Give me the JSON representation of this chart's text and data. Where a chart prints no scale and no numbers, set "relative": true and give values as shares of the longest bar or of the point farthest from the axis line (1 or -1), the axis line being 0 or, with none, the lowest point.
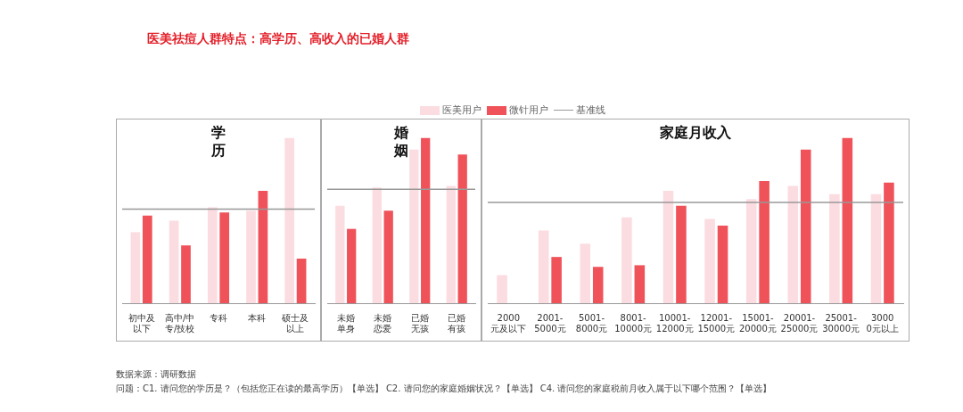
{
  "chart_data": [
    {
      "type": "other",
      "title": "医美祛痘人群特点：高学历、高收入的已婚人群",
      "annotations": [
        "数据来源：调研数据",
        "问题：C1. 请问您的学历是？（包括您正在读的最高学历）【单选】 C2. 请问您的家庭婚姻状况？【单选】 C4. 请问您的家庭税前月收入属于以下哪个范围？【单选】"
      ]
    },
    {
      "type": "bar",
      "title": "学历",
      "relative": true,
      "legend": "top",
      "categories": [
        "初中及以下",
        "高中/中专/技校",
        "专科",
        "本科",
        "硕士及以上"
      ],
      "series": [
        {
          "name": "医美用户",
          "color": "#fbdce1",
          "values": [
            0.43,
            0.5,
            0.58,
            0.56,
            1.0
          ]
        },
        {
          "name": "微针用户",
          "color": "#f0525a",
          "values": [
            0.53,
            0.35,
            0.55,
            0.68,
            0.27
          ]
        }
      ],
      "ref_lines": [
        {
          "axis": "y",
          "value": 0.57,
          "label": "基准线",
          "color": "#999999"
        }
      ]
    },
    {
      "type": "bar",
      "title": "婚姻",
      "relative": true,
      "categories": [
        "未婚单身",
        "未婚恋爱",
        "已婚无孩",
        "已婚有孩"
      ],
      "series": [
        {
          "color": "#fbdce1",
          "values": [
            0.59,
            0.7,
            0.93,
            0.71
          ]
        },
        {
          "color": "#f0525a",
          "values": [
            0.45,
            0.56,
            1.0,
            0.9
          ]
        }
      ],
      "ref_lines": [
        {
          "axis": "y",
          "value": 0.69,
          "color": "#999999"
        }
      ]
    },
    {
      "type": "bar",
      "title": "家庭月收入",
      "relative": true,
      "categories": [
        "2000元及以下",
        "2001-5000元",
        "5001-8000元",
        "8001-10000元",
        "10001-12000元",
        "12001-15000元",
        "15001-20000元",
        "20001-25000元",
        "25001-30000元",
        "30000元以上"
      ],
      "series": [
        {
          "color": "#fbdce1",
          "values": [
            0.17,
            0.44,
            0.36,
            0.52,
            0.68,
            0.51,
            0.63,
            0.71,
            0.66,
            0.66
          ]
        },
        {
          "color": "#f0525a",
          "values": [
            0,
            0.28,
            0.22,
            0.23,
            0.59,
            0.47,
            0.74,
            0.93,
            1.0,
            0.73
          ]
        }
      ],
      "ref_lines": [
        {
          "axis": "y",
          "value": 0.61,
          "color": "#999999"
        }
      ]
    }
  ]
}
